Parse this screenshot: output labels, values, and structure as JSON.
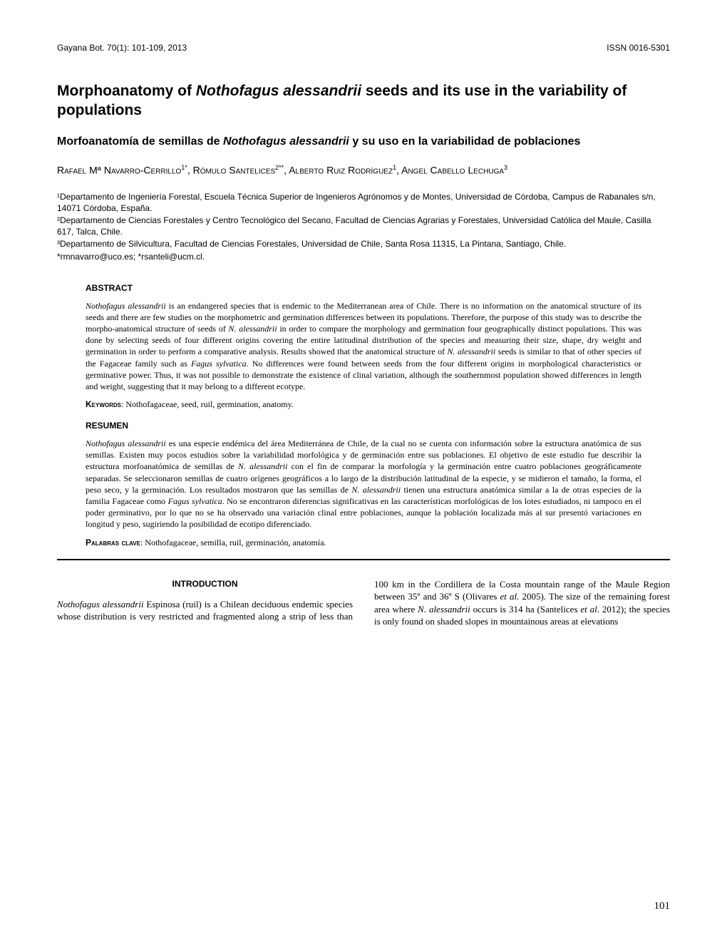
{
  "header": {
    "journal": "Gayana Bot. 70(1): 101-109, 2013",
    "issn": "ISSN 0016-5301"
  },
  "title": "Morphoanatomy of Nothofagus alessandrii seeds and its use in the variability of populations",
  "subtitle": "Morfoanatomía de semillas de Nothofagus alessandrii y su uso en la variabilidad de poblaciones",
  "authors_html": "Rafael Mª Navarro-Cerrillo<sup>1*</sup>, Rómulo Santelices<sup>2**</sup>, Alberto Ruiz Rodríguez<sup>1</sup>, Angel Cabello Lechuga<sup>3</sup>",
  "affiliations": [
    "¹Departamento de Ingeniería Forestal, Escuela Técnica Superior de Ingenieros Agrónomos y de Montes, Universidad de Córdoba, Campus de Rabanales s/n, 14071 Córdoba, España.",
    "²Departamento de Ciencias Forestales y Centro Tecnológico del Secano, Facultad de Ciencias Agrarias y Forestales, Universidad Católica del Maule, Casilla 617, Talca, Chile.",
    "³Departamento de Silvicultura, Facultad de Ciencias Forestales, Universidad de Chile, Santa Rosa 11315, La Pintana, Santiago, Chile."
  ],
  "emails": "*rmnavarro@uco.es; *rsanteli@ucm.cl.",
  "abstract": {
    "heading": "ABSTRACT",
    "text_html": "<em>Nothofagus alessandrii</em> is an endangered species that is endemic to the Mediterranean area of Chile. There is no information on the anatomical structure of its seeds and there are few studies on the morphometric and germination differences between its populations. Therefore, the purpose of this study was to describe the morpho-anatomical structure of seeds of <em>N. alessandrii</em> in order to compare the morphology and germination four geographically distinct populations. This was done by selecting seeds of four different origins covering the entire latitudinal distribution of the species and measuring their size, shape, dry weight and germination in order to perform a comparative analysis. Results showed that the anatomical structure of <em>N. alessandrii</em> seeds is similar to that of other species of the Fagaceae family such as <em>Fagus sylvatica</em>. No differences were found between seeds from the four different origins in morphological characteristics or germinative power. Thus, it was not possible to demonstrate the existence of clinal variation, although the southernmost population showed differences in length and weight, suggesting that it may belong to a different ecotype.",
    "keywords_label": "Keywords",
    "keywords": ": Nothofagaceae, seed, ruil, germination, anatomy."
  },
  "resumen": {
    "heading": "RESUMEN",
    "text_html": "<em>Nothofagus alessandrii</em> es una especie endémica del área Mediterránea de Chile, de la cual no se cuenta con información sobre la estructura anatómica de sus semillas. Existen muy pocos estudios sobre la variabilidad morfológica y de germinación entre sus poblaciones. El objetivo de este estudio fue describir la estructura morfoanatómica de semillas de <em>N. alessandrii</em> con el fin de comparar la morfología y la germinación entre cuatro poblaciones geográficamente separadas. Se seleccionaron semillas de cuatro orígenes geográficos a lo largo de la distribución latitudinal de la especie, y se midieron el tamaño, la forma, el peso seco, y la germinación. Los resultados mostraron que las semillas de <em>N. alessandrii</em> tienen una estructura anatómica similar a la de otras especies de la familia Fagaceae como <em>Fagus sylvatica</em>. No se encontraron diferencias significativas en las características morfológicas de los lotes estudiados, ni tampoco en el poder germinativo, por lo que no se ha observado una variación clinal entre poblaciones, aunque la población localizada más al sur presentó variaciones en longitud y peso, sugiriendo la posibilidad de ecotipo diferenciado.",
    "keywords_label": "Palabras clave",
    "keywords": ": Nothofagaceae, semilla, ruil, germinación, anatomía."
  },
  "introduction": {
    "heading": "INTRODUCTION",
    "text_html": "<em>Nothofagus alessandrii</em> Espinosa (ruil) is a Chilean deciduous endemic species whose distribution is very restricted and fragmented along a strip of less than 100 km in the Cordillera de la Costa mountain range of the Maule Region between 35º and 36º S (Olivares <em>et al.</em> 2005). The size of the remaining forest area where <em>N. alessandrii</em> occurs is 314 ha (Santelices <em>et al</em>. 2012); the species is only found on shaded slopes in mountainous areas at elevations"
  },
  "page_number": "101"
}
